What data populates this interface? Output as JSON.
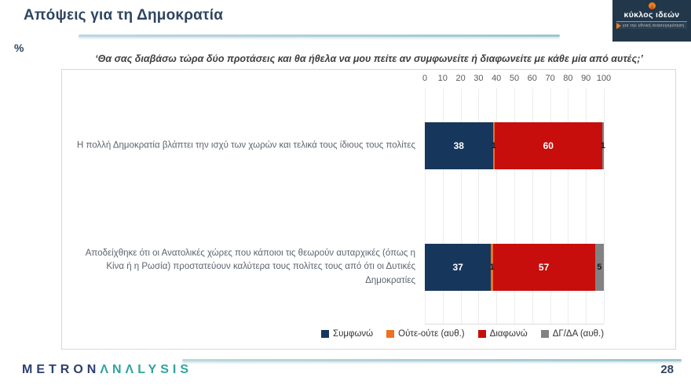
{
  "page": {
    "title": "Απόψεις για τη Δημοκρατία",
    "percent_label": "%",
    "page_number": "28"
  },
  "brand": {
    "name": "κύκλος ιδεών",
    "tagline": "για την εθνική ανασυγκρότηση"
  },
  "footer": {
    "logo_part1": "METRON",
    "logo_part2": "ΛNΛLYSIS"
  },
  "chart_data": {
    "type": "bar",
    "orientation": "horizontal",
    "stacked": true,
    "subtitle": "‘Θα σας διαβάσω τώρα δύο προτάσεις και θα ήθελα να μου πείτε αν συμφωνείτε ή διαφωνείτε με κάθε μία από αυτές;’",
    "xlim": [
      0,
      100
    ],
    "x_ticks": [
      0,
      10,
      20,
      30,
      40,
      50,
      60,
      70,
      80,
      90,
      100
    ],
    "grid": true,
    "legend_position": "bottom",
    "categories": [
      "Η πολλή Δημοκρατία βλάπτει την ισχύ των χωρών και τελικά τους ίδιους τους πολίτες",
      "Αποδείχθηκε ότι οι Ανατολικές χώρες που κάποιοι τις θεωρούν αυταρχικές (όπως η Κίνα ή η Ρωσία) προστατεύουν καλύτερα τους πολίτες τους από ότι οι Δυτικές Δημοκρατίες"
    ],
    "series": [
      {
        "name": "Συμφωνώ",
        "color": "#16365c",
        "label_color": "#ffffff",
        "values": [
          38,
          37
        ]
      },
      {
        "name": "Ούτε-ούτε (αυθ.)",
        "color": "#ed7122",
        "label_color": "#1a1a1a",
        "values": [
          1,
          1
        ]
      },
      {
        "name": "Διαφωνώ",
        "color": "#c80d0d",
        "label_color": "#ffffff",
        "values": [
          60,
          57
        ]
      },
      {
        "name": "ΔΓ/ΔΑ (αυθ.)",
        "color": "#828282",
        "label_color": "#1a1a1a",
        "values": [
          1,
          5
        ]
      }
    ]
  }
}
